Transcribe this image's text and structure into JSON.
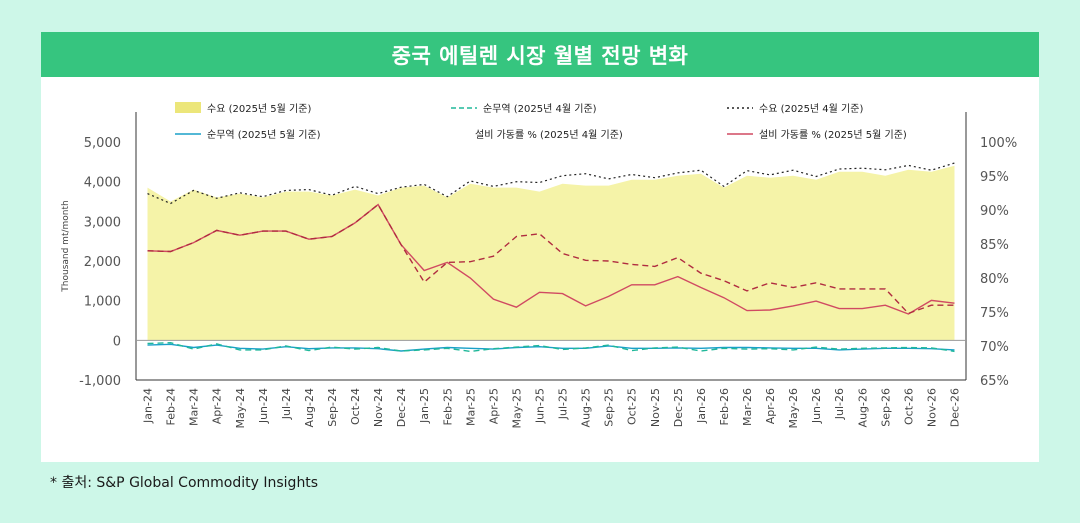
{
  "chart_data": {
    "type": "area",
    "title": "중국 에틸렌 시장 월별 전망 변화",
    "source": "* 출처: S&P Global Commodity Insights",
    "ylabel": "Thousand mt/month",
    "ylim": [
      -1000,
      5000
    ],
    "yticks": [
      "5,000",
      "4,000",
      "3,000",
      "2,000",
      "1,000",
      "0",
      "-1,000"
    ],
    "y2lim": [
      65,
      100
    ],
    "y2ticks": [
      "100%",
      "95%",
      "90%",
      "85%",
      "80%",
      "75%",
      "70%",
      "65%"
    ],
    "x": [
      "Jan-24",
      "Feb-24",
      "Mar-24",
      "Apr-24",
      "May-24",
      "Jun-24",
      "Jul-24",
      "Aug-24",
      "Sep-24",
      "Oct-24",
      "Nov-24",
      "Dec-24",
      "Jan-25",
      "Feb-25",
      "Mar-25",
      "Apr-25",
      "May-25",
      "Jun-25",
      "Jul-25",
      "Aug-25",
      "Sep-25",
      "Oct-25",
      "Nov-25",
      "Dec-25",
      "Jan-26",
      "Feb-26",
      "Mar-26",
      "Apr-26",
      "May-26",
      "Jun-26",
      "Jul-26",
      "Aug-26",
      "Sep-26",
      "Oct-26",
      "Nov-26",
      "Dec-26"
    ],
    "legend": {
      "demand_may": "수요 (2025년 5월 기준)",
      "net_import_apr": "순무역 (2025년 4월 기준)",
      "demand_apr": "수요 (2025년 4월 기준)",
      "net_import_may": "순무역 (2025년 5월 기준)",
      "util_apr": "설비 가동률 % (2025년 4월 기준)",
      "util_may": "설비 가동률 % (2025년 5월 기준)"
    },
    "series": [
      {
        "name": "수요 (2025년 5월 기준)",
        "axis": "left",
        "style": "area",
        "color": "#f5f3a8",
        "values": [
          3850,
          3500,
          3800,
          3600,
          3700,
          3600,
          3750,
          3750,
          3650,
          3800,
          3650,
          3850,
          3900,
          3600,
          3950,
          3850,
          3850,
          3750,
          3950,
          3900,
          3900,
          4050,
          4050,
          4150,
          4200,
          3850,
          4150,
          4100,
          4150,
          4050,
          4250,
          4250,
          4150,
          4300,
          4250,
          4400
        ]
      },
      {
        "name": "수요 (2025년 4월 기준)",
        "axis": "left",
        "style": "dotted",
        "color": "#222222",
        "values": [
          3700,
          3450,
          3780,
          3580,
          3720,
          3620,
          3780,
          3800,
          3660,
          3880,
          3700,
          3860,
          3930,
          3620,
          4020,
          3880,
          4000,
          3980,
          4150,
          4200,
          4070,
          4180,
          4100,
          4220,
          4290,
          3880,
          4280,
          4170,
          4290,
          4130,
          4320,
          4340,
          4300,
          4410,
          4290,
          4470
        ]
      },
      {
        "name": "순무역 (2025년 5월 기준)",
        "axis": "left",
        "style": "solid",
        "color": "#1aa0c8",
        "values": [
          -120,
          -100,
          -180,
          -120,
          -200,
          -220,
          -160,
          -210,
          -190,
          -190,
          -210,
          -270,
          -220,
          -180,
          -200,
          -220,
          -180,
          -160,
          -200,
          -200,
          -140,
          -200,
          -200,
          -190,
          -200,
          -180,
          -180,
          -190,
          -200,
          -200,
          -240,
          -220,
          -200,
          -200,
          -210,
          -240
        ]
      },
      {
        "name": "순무역 (2025년 4월 기준)",
        "axis": "left",
        "style": "dashed",
        "color": "#20b89a",
        "values": [
          -80,
          -60,
          -220,
          -90,
          -240,
          -240,
          -140,
          -260,
          -170,
          -220,
          -180,
          -270,
          -240,
          -200,
          -280,
          -210,
          -170,
          -130,
          -230,
          -190,
          -120,
          -260,
          -190,
          -170,
          -270,
          -200,
          -220,
          -210,
          -240,
          -170,
          -220,
          -200,
          -190,
          -180,
          -190,
          -280
        ]
      },
      {
        "name": "설비 가동률 % (2025년 5월 기준)",
        "axis": "right",
        "style": "solid",
        "color": "#d04a62",
        "values": [
          84.0,
          83.9,
          85.2,
          87.0,
          86.3,
          86.9,
          86.9,
          85.7,
          86.1,
          88.1,
          90.8,
          84.9,
          81.1,
          82.3,
          80.0,
          76.9,
          75.7,
          77.9,
          77.7,
          75.9,
          77.3,
          79.0,
          79.0,
          80.2,
          78.6,
          77.1,
          75.2,
          75.3,
          75.9,
          76.6,
          75.5,
          75.5,
          76.0,
          74.7,
          76.7,
          76.3
        ]
      },
      {
        "name": "설비 가동률 % (2025년 4월 기준)",
        "axis": "right",
        "style": "dashed",
        "color": "#b02c40",
        "values": [
          84.0,
          83.9,
          85.2,
          87.0,
          86.3,
          86.9,
          86.9,
          85.7,
          86.1,
          88.1,
          90.8,
          84.9,
          79.4,
          82.3,
          82.4,
          83.2,
          86.1,
          86.5,
          83.6,
          82.6,
          82.5,
          82.0,
          81.7,
          83.0,
          80.7,
          79.6,
          78.1,
          79.3,
          78.6,
          79.3,
          78.4,
          78.4,
          78.4,
          74.8,
          76.0,
          76.0
        ]
      }
    ]
  }
}
